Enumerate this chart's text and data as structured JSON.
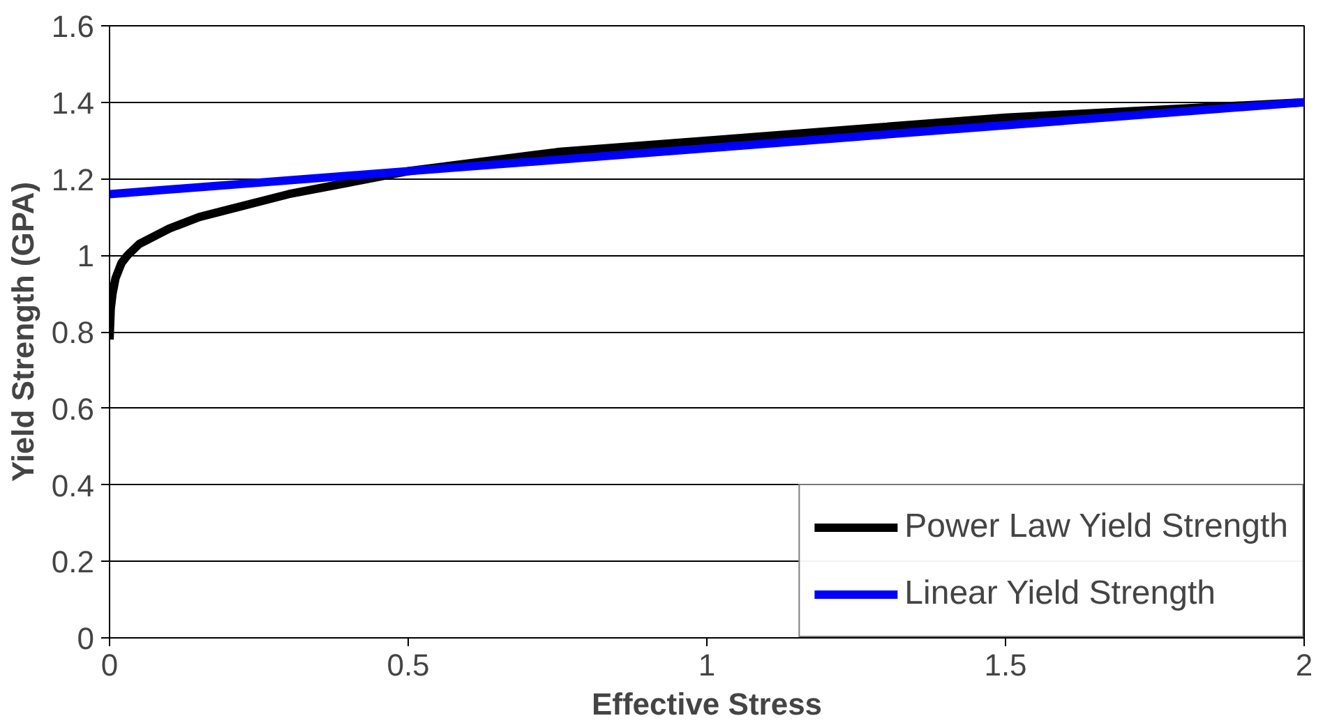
{
  "chart_data": {
    "type": "line",
    "xlabel": "Effective Stress",
    "ylabel": "Yield Strength (GPA)",
    "xlim": [
      0,
      2
    ],
    "ylim": [
      0,
      1.6
    ],
    "xticks": [
      0,
      0.5,
      1,
      1.5,
      2
    ],
    "yticks": [
      0,
      0.2,
      0.4,
      0.6,
      0.8,
      1,
      1.2,
      1.4,
      1.6
    ],
    "grid": "y",
    "legend": "bottom right",
    "line_style": "solid",
    "marker": "none",
    "series": [
      {
        "name": "Power Law Yield Strength",
        "color": "#000000",
        "x": [
          0,
          0.002,
          0.005,
          0.01,
          0.02,
          0.03,
          0.05,
          0.075,
          0.1,
          0.15,
          0.2,
          0.3,
          0.4,
          0.5,
          0.75,
          1,
          1.25,
          1.5,
          1.75,
          2
        ],
        "values": [
          0.78,
          0.86,
          0.9,
          0.94,
          0.98,
          1.0,
          1.03,
          1.05,
          1.07,
          1.1,
          1.12,
          1.16,
          1.19,
          1.22,
          1.27,
          1.3,
          1.33,
          1.36,
          1.38,
          1.4
        ]
      },
      {
        "name": "Linear Yield Strength",
        "color": "#0000ff",
        "x": [
          0,
          2
        ],
        "values": [
          1.16,
          1.4
        ]
      }
    ]
  }
}
